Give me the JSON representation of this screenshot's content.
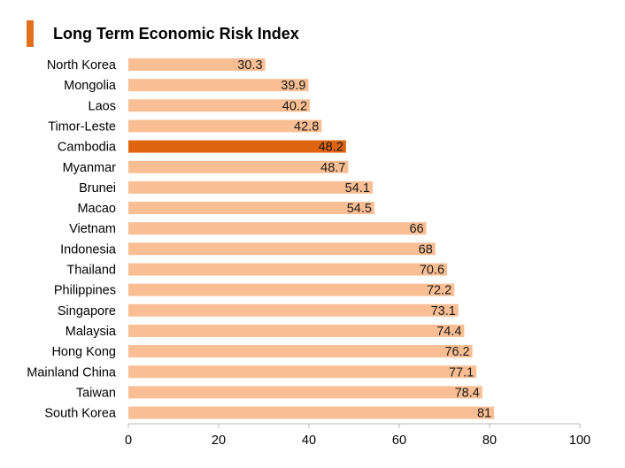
{
  "title": "Long Term Economic Risk Index",
  "colors": {
    "title_marker": "#e0701b",
    "bar": "#f9be93",
    "highlight_bar": "#e0640d",
    "axis": "#b8b8b8",
    "label_text": "#000000",
    "value_text": "#1a1a1a"
  },
  "chart_data": {
    "type": "bar",
    "orientation": "horizontal",
    "title": "Long Term Economic Risk Index",
    "xlabel": "",
    "ylabel": "",
    "xlim": [
      0,
      100
    ],
    "xticks": [
      0,
      20,
      40,
      60,
      80,
      100
    ],
    "grid": false,
    "highlight": "Cambodia",
    "categories": [
      "North Korea",
      "Mongolia",
      "Laos",
      "Timor-Leste",
      "Cambodia",
      "Myanmar",
      "Brunei",
      "Macao",
      "Vietnam",
      "Indonesia",
      "Thailand",
      "Philippines",
      "Singapore",
      "Malaysia",
      "Hong Kong",
      "Mainland China",
      "Taiwan",
      "South Korea"
    ],
    "values": [
      30.3,
      39.9,
      40.2,
      42.8,
      48.2,
      48.7,
      54.1,
      54.5,
      66,
      68,
      70.6,
      72.2,
      73.1,
      74.4,
      76.2,
      77.1,
      78.4,
      81
    ]
  }
}
